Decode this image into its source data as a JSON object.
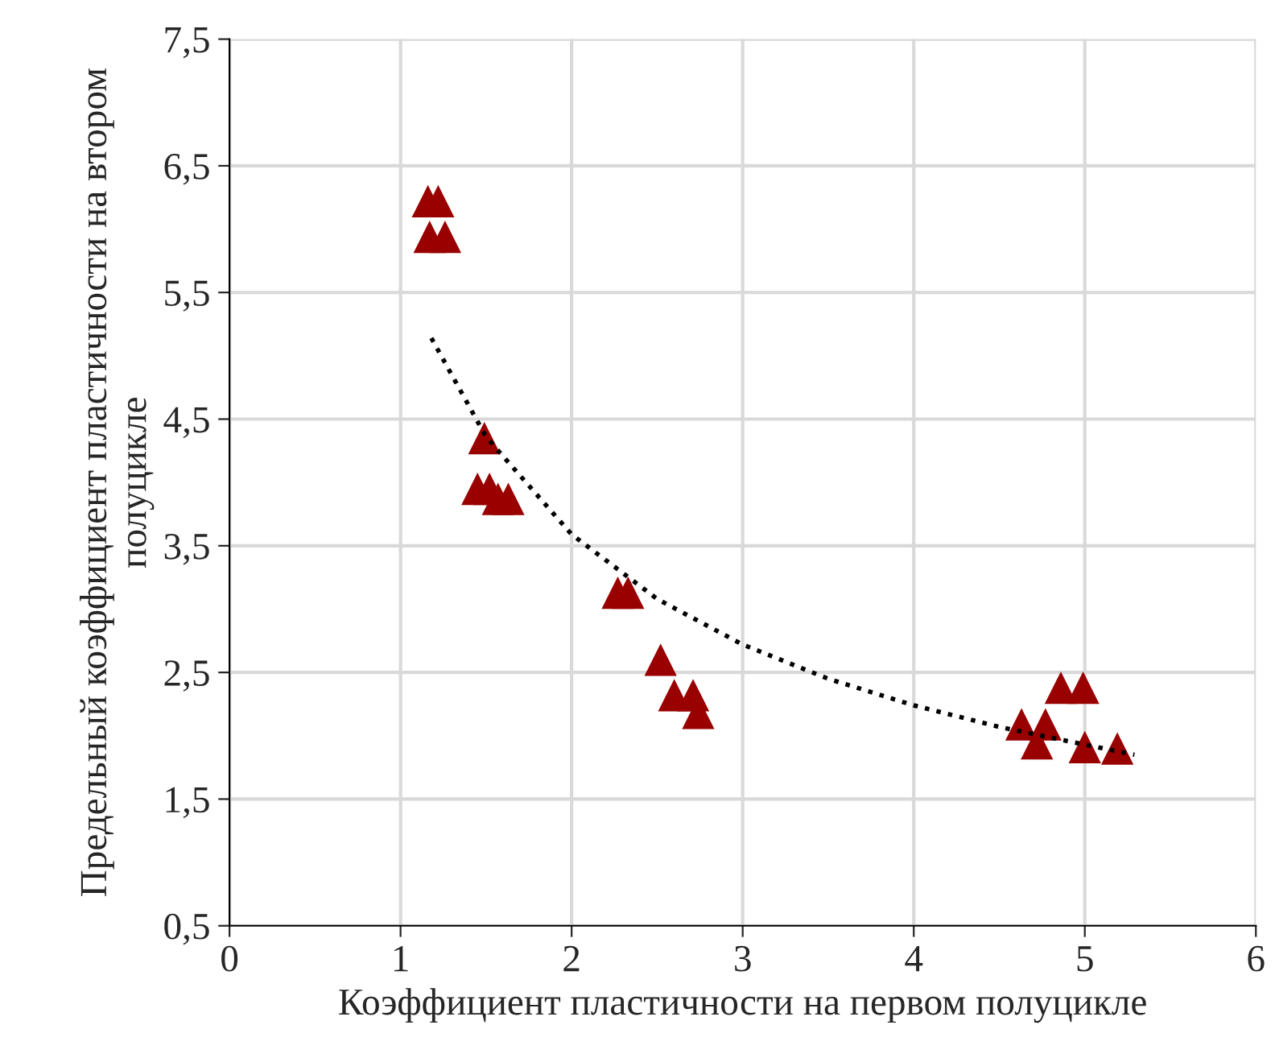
{
  "chart_data": {
    "type": "scatter",
    "xlabel": "Коэффициент пластичности на первом полуцикле",
    "ylabel": "Предельный коэффициент пластичности на втором полуцикле",
    "xlim": [
      0,
      6
    ],
    "xticks": [
      0,
      1,
      2,
      3,
      4,
      5,
      6
    ],
    "ylim": [
      0.5,
      7.5
    ],
    "yticks": [
      {
        "value": 0.5,
        "label": "0,5"
      },
      {
        "value": 1.5,
        "label": "1,5"
      },
      {
        "value": 2.5,
        "label": "2,5"
      },
      {
        "value": 3.5,
        "label": "3,5"
      },
      {
        "value": 4.5,
        "label": "4,5"
      },
      {
        "value": 5.5,
        "label": "5,5"
      },
      {
        "value": 6.5,
        "label": "6,5"
      },
      {
        "value": 7.5,
        "label": "7,5"
      }
    ],
    "grid": true,
    "series": [
      {
        "color": "#990000",
        "marker": "triangle",
        "x": [
          1.16,
          1.22,
          1.17,
          1.26,
          1.49,
          1.45,
          1.52,
          1.57,
          1.63,
          2.27,
          2.33,
          2.52,
          2.6,
          2.71,
          2.74,
          4.86,
          4.99,
          4.63,
          4.77,
          4.72,
          5.0,
          5.19
        ],
        "values": [
          6.22,
          6.22,
          5.94,
          5.94,
          4.35,
          3.95,
          3.95,
          3.87,
          3.87,
          3.13,
          3.13,
          2.6,
          2.32,
          2.32,
          2.18,
          2.38,
          2.38,
          2.09,
          2.09,
          1.94,
          1.91,
          1.9
        ]
      },
      {
        "type": "line",
        "color": "#000000",
        "marker": "none",
        "line_style": "dotted",
        "x": [
          1.18,
          1.5,
          2,
          2.5,
          3,
          3.5,
          4,
          4.5,
          5,
          5.29
        ],
        "values": [
          5.14,
          4.36,
          3.59,
          3.08,
          2.72,
          2.45,
          2.24,
          2.07,
          1.93,
          1.85
        ]
      }
    ]
  }
}
